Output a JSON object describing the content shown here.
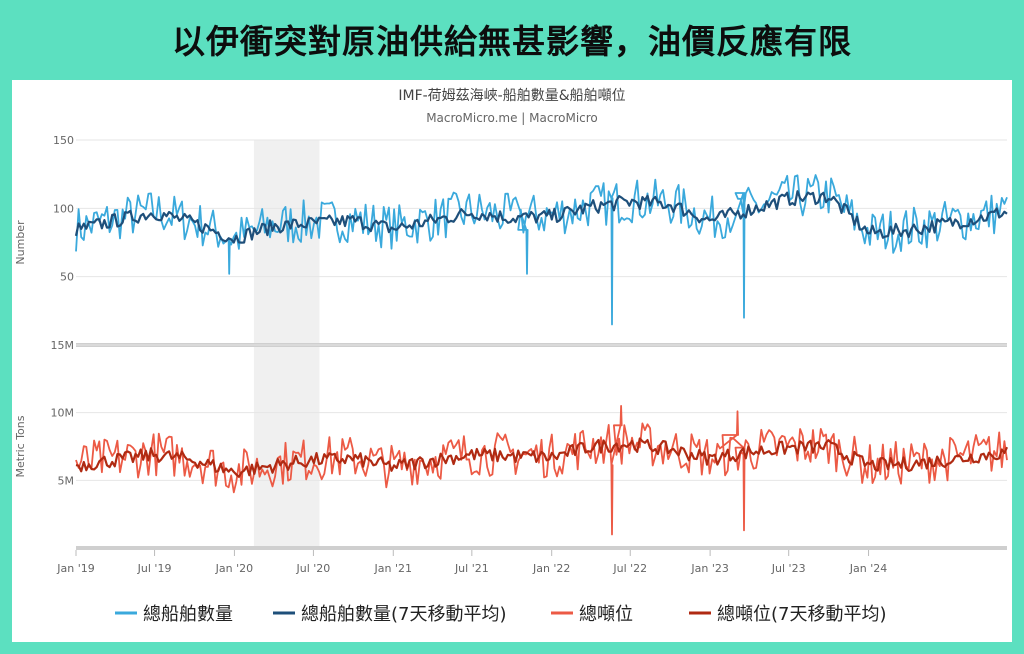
{
  "banner": {
    "title": "以伊衝突對原油供給無甚影響，油價反應有限"
  },
  "chart_data": {
    "type": "line",
    "title": "IMF-荷姆茲海峽-船舶數量&船舶噸位",
    "subtitle": "MacroMicro.me | MacroMicro",
    "x_range": [
      "2019-01-01",
      "2024-11-15"
    ],
    "x_ticks": [
      "Jan '19",
      "Jul '19",
      "Jan '20",
      "Jul '20",
      "Jan '21",
      "Jul '21",
      "Jan '22",
      "Jul '22",
      "Jan '23",
      "Jul '23",
      "Jan '24"
    ],
    "shaded_period": [
      "2020-02-15",
      "2020-07-15"
    ],
    "panels": [
      {
        "ylabel": "Number",
        "ylim": [
          0,
          150
        ],
        "yticks": [
          "150",
          "100",
          "50"
        ],
        "series": [
          {
            "name": "總船舶數量",
            "color": "#3aa9dc",
            "x": [
              "2019-01",
              "2019-04",
              "2019-07",
              "2019-10",
              "2020-01",
              "2020-04",
              "2020-07",
              "2020-10",
              "2021-01",
              "2021-04",
              "2021-07",
              "2021-10",
              "2022-01",
              "2022-04",
              "2022-07",
              "2022-10",
              "2023-01",
              "2023-04",
              "2023-07",
              "2023-10",
              "2024-01",
              "2024-04",
              "2024-07",
              "2024-10",
              "2024-11"
            ],
            "y": [
              85,
              92,
              98,
              90,
              78,
              88,
              90,
              92,
              86,
              92,
              98,
              94,
              95,
              102,
              106,
              104,
              92,
              100,
              108,
              110,
              82,
              85,
              90,
              95,
              98
            ],
            "spikes": [
              {
                "x": "2022-05-20",
                "y": 15
              },
              {
                "x": "2023-03-20",
                "y": 20
              },
              {
                "x": "2019-12-20",
                "y": 52
              },
              {
                "x": "2021-11-05",
                "y": 52
              }
            ]
          },
          {
            "name": "總船舶數量(7天移動平均)",
            "color": "#1e4f7a",
            "x": [
              "2019-01",
              "2019-04",
              "2019-07",
              "2019-10",
              "2020-01",
              "2020-04",
              "2020-07",
              "2020-10",
              "2021-01",
              "2021-04",
              "2021-07",
              "2021-10",
              "2022-01",
              "2022-04",
              "2022-07",
              "2022-10",
              "2023-01",
              "2023-04",
              "2023-07",
              "2023-10",
              "2024-01",
              "2024-04",
              "2024-07",
              "2024-10",
              "2024-11"
            ],
            "y": [
              84,
              91,
              97,
              89,
              78,
              87,
              89,
              91,
              85,
              91,
              97,
              93,
              94,
              101,
              105,
              103,
              91,
              99,
              107,
              109,
              82,
              84,
              89,
              94,
              97
            ]
          }
        ]
      },
      {
        "ylabel": "Metric Tons",
        "ylim": [
          0,
          15000000
        ],
        "yticks": [
          "15M",
          "10M",
          "5M"
        ],
        "series": [
          {
            "name": "總噸位",
            "color": "#ec5a45",
            "x": [
              "2019-01",
              "2019-04",
              "2019-07",
              "2019-10",
              "2020-01",
              "2020-04",
              "2020-07",
              "2020-10",
              "2021-01",
              "2021-04",
              "2021-07",
              "2021-10",
              "2022-01",
              "2022-04",
              "2022-07",
              "2022-10",
              "2023-01",
              "2023-04",
              "2023-07",
              "2023-10",
              "2024-01",
              "2024-04",
              "2024-07",
              "2024-10",
              "2024-11"
            ],
            "y": [
              6200000,
              6600000,
              7000000,
              6600000,
              5600000,
              6200000,
              6600000,
              6700000,
              6000000,
              6600000,
              7000000,
              6900000,
              6800000,
              7600000,
              7800000,
              7400000,
              6700000,
              7200000,
              7500000,
              7600000,
              6100000,
              6300000,
              6600000,
              7000000,
              7100000
            ],
            "spikes": [
              {
                "x": "2022-05-20",
                "y": 1000000
              },
              {
                "x": "2023-03-20",
                "y": 1300000
              },
              {
                "x": "2022-06-10",
                "y": 10500000
              },
              {
                "x": "2023-03-05",
                "y": 10100000
              }
            ]
          },
          {
            "name": "總噸位(7天移動平均)",
            "color": "#b02a12",
            "x": [
              "2019-01",
              "2019-04",
              "2019-07",
              "2019-10",
              "2020-01",
              "2020-04",
              "2020-07",
              "2020-10",
              "2021-01",
              "2021-04",
              "2021-07",
              "2021-10",
              "2022-01",
              "2022-04",
              "2022-07",
              "2022-10",
              "2023-01",
              "2023-04",
              "2023-07",
              "2023-10",
              "2024-01",
              "2024-04",
              "2024-07",
              "2024-10",
              "2024-11"
            ],
            "y": [
              6100000,
              6500000,
              6900000,
              6500000,
              5600000,
              6100000,
              6500000,
              6600000,
              6000000,
              6500000,
              6900000,
              6800000,
              6700000,
              7500000,
              7700000,
              7300000,
              6600000,
              7100000,
              7400000,
              7500000,
              6100000,
              6200000,
              6500000,
              6900000,
              7000000
            ]
          }
        ]
      }
    ],
    "legend": {
      "position": "bottom",
      "items": [
        {
          "label": "總船舶數量",
          "color": "#3aa9dc"
        },
        {
          "label": "總船舶數量(7天移動平均)",
          "color": "#1e4f7a"
        },
        {
          "label": "總噸位",
          "color": "#ec5a45"
        },
        {
          "label": "總噸位(7天移動平均)",
          "color": "#b02a12"
        }
      ]
    }
  }
}
